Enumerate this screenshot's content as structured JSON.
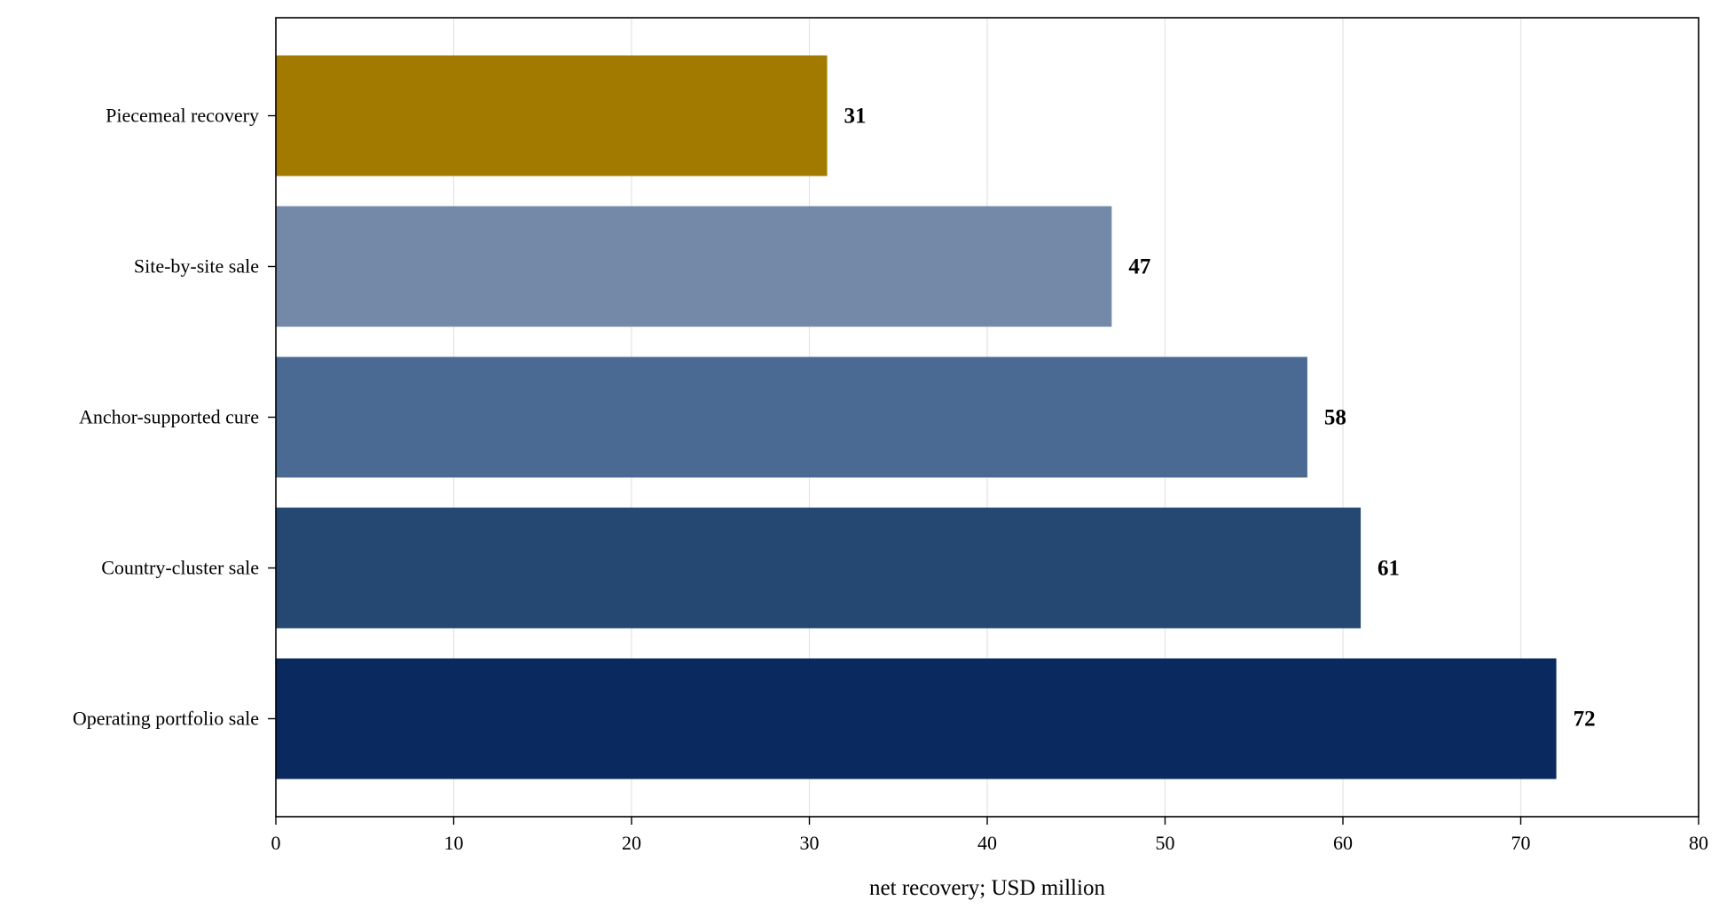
{
  "chart_data": {
    "type": "bar",
    "orientation": "horizontal",
    "categories": [
      "Piecemeal recovery",
      "Site-by-site sale",
      "Anchor-supported cure",
      "Country-cluster sale",
      "Operating portfolio sale"
    ],
    "values": [
      31,
      47,
      58,
      61,
      72
    ],
    "value_labels": [
      "31",
      "47",
      "58",
      "61",
      "72"
    ],
    "bar_colors": [
      "#a37a00",
      "#7489a8",
      "#4a6a93",
      "#254872",
      "#0a295e"
    ],
    "xlabel": "net recovery; USD million",
    "ylabel": "",
    "title": "",
    "xlim": [
      0,
      80
    ],
    "xticks": [
      0,
      10,
      20,
      30,
      40,
      50,
      60,
      70,
      80
    ],
    "xtick_labels": [
      "0",
      "10",
      "20",
      "30",
      "40",
      "50",
      "60",
      "70",
      "80"
    ],
    "grid": "vertical",
    "legend": "none"
  }
}
